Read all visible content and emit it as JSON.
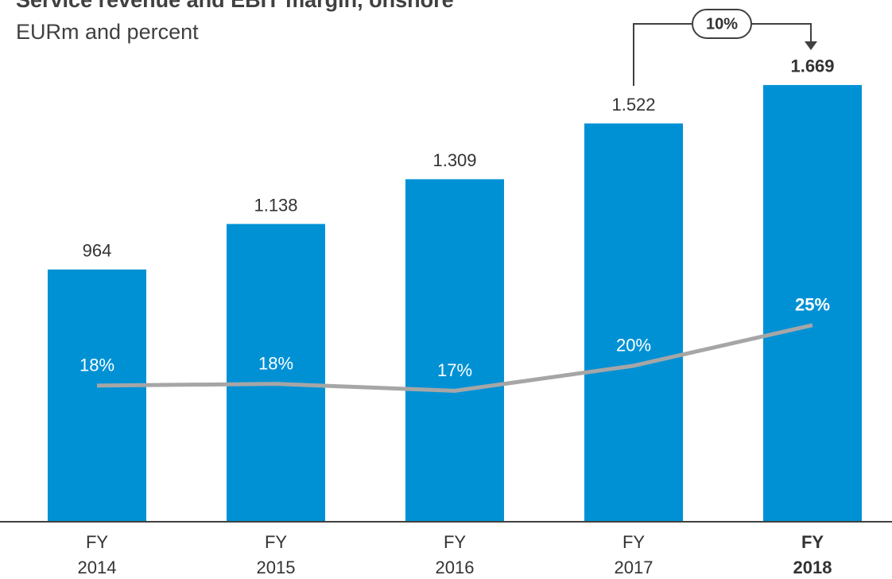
{
  "chart_data": {
    "type": "bar",
    "title": "Service revenue and EBIT margin, onshore",
    "subtitle": "EURm and percent",
    "annotation": "10%",
    "categories": [
      "FY 2014",
      "FY 2015",
      "FY 2016",
      "FY 2017",
      "FY 2018"
    ],
    "series": [
      {
        "name": "Service revenue",
        "type": "bar",
        "color": "#0091d5",
        "values": [
          964,
          1138,
          1309,
          1522,
          1669
        ],
        "value_labels": [
          "964",
          "1.138",
          "1.309",
          "1.522",
          "1.669"
        ]
      },
      {
        "name": "EBIT margin",
        "type": "line",
        "axis": "y2",
        "color": "#a6a6a6",
        "values": [
          18.0,
          18.2,
          17.4,
          20.3,
          25.0
        ],
        "value_labels": [
          "18%",
          "18%",
          "17%",
          "20%",
          "25%"
        ]
      }
    ],
    "ylim": [
      0,
      2000
    ],
    "y2lim": [
      2.25,
      62.8
    ]
  }
}
